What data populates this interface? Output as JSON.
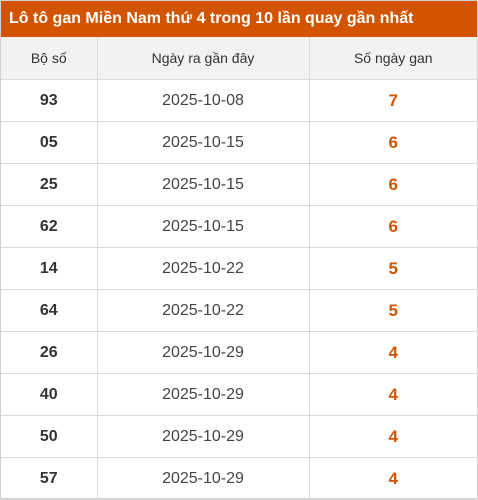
{
  "title": "Lô tô gan Miền Nam thứ 4 trong 10 lần quay gần nhất",
  "colors": {
    "accent": "#d35400",
    "header_bg": "#f2f2f2"
  },
  "table": {
    "headers": [
      "Bộ số",
      "Ngày ra gần đây",
      "Số ngày gan"
    ],
    "rows": [
      {
        "number": "93",
        "date": "2025-10-08",
        "days": "7"
      },
      {
        "number": "05",
        "date": "2025-10-15",
        "days": "6"
      },
      {
        "number": "25",
        "date": "2025-10-15",
        "days": "6"
      },
      {
        "number": "62",
        "date": "2025-10-15",
        "days": "6"
      },
      {
        "number": "14",
        "date": "2025-10-22",
        "days": "5"
      },
      {
        "number": "64",
        "date": "2025-10-22",
        "days": "5"
      },
      {
        "number": "26",
        "date": "2025-10-29",
        "days": "4"
      },
      {
        "number": "40",
        "date": "2025-10-29",
        "days": "4"
      },
      {
        "number": "50",
        "date": "2025-10-29",
        "days": "4"
      },
      {
        "number": "57",
        "date": "2025-10-29",
        "days": "4"
      }
    ]
  }
}
